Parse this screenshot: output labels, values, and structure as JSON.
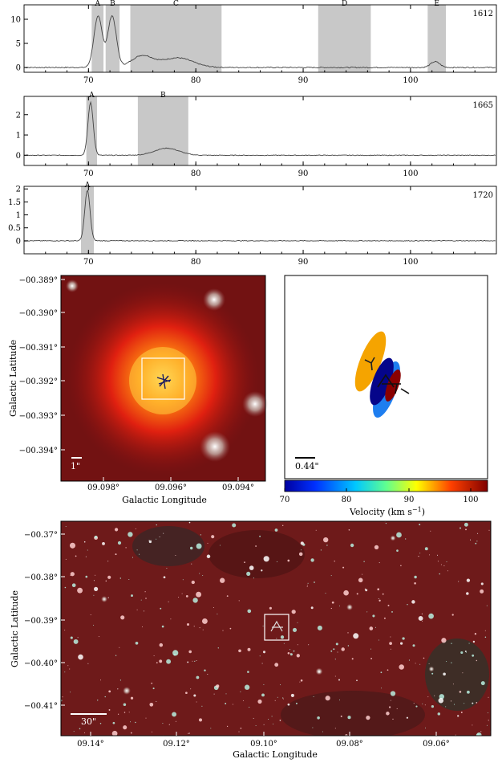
{
  "chart_data": [
    {
      "type": "line",
      "panel": "spectrum-1612",
      "freq_label": "1612",
      "xlim": [
        64,
        108
      ],
      "x_ticks": [
        "70",
        "80",
        "90",
        "100"
      ],
      "ylim": [
        -1,
        13
      ],
      "y_ticks": [
        "0",
        "5",
        "10"
      ],
      "bands": [
        {
          "label": "A",
          "x0": 70.3,
          "x1": 71.4
        },
        {
          "label": "B",
          "x0": 71.6,
          "x1": 72.9
        },
        {
          "label": "C",
          "x0": 73.9,
          "x1": 82.4
        },
        {
          "label": "D",
          "x0": 91.4,
          "x1": 96.3
        },
        {
          "label": "E",
          "x0": 101.6,
          "x1": 103.3
        }
      ],
      "peaks": [
        {
          "x": 70.9,
          "y": 10.6,
          "w": 0.55
        },
        {
          "x": 72.2,
          "y": 10.7,
          "w": 0.55
        },
        {
          "x": 75.0,
          "y": 2.4,
          "w": 1.4
        },
        {
          "x": 78.3,
          "y": 2.0,
          "w": 2.0
        },
        {
          "x": 102.3,
          "y": 1.2,
          "w": 0.6
        }
      ],
      "noise": 0.08
    },
    {
      "type": "line",
      "panel": "spectrum-1665",
      "freq_label": "1665",
      "xlim": [
        64,
        108
      ],
      "x_ticks": [
        "70",
        "80",
        "90",
        "100"
      ],
      "ylim": [
        -0.5,
        2.9
      ],
      "y_ticks": [
        "0",
        "1",
        "2"
      ],
      "bands": [
        {
          "label": "A",
          "x0": 69.8,
          "x1": 70.8
        },
        {
          "label": "B",
          "x0": 74.6,
          "x1": 79.3
        }
      ],
      "peaks": [
        {
          "x": 70.2,
          "y": 2.6,
          "w": 0.35
        },
        {
          "x": 77.3,
          "y": 0.35,
          "w": 1.6
        }
      ],
      "noise": 0.05
    },
    {
      "type": "line",
      "panel": "spectrum-1720",
      "freq_label": "1720",
      "xlim": [
        64,
        108
      ],
      "x_ticks": [
        "70",
        "80",
        "90",
        "100"
      ],
      "ylim": [
        -0.5,
        2.1
      ],
      "y_ticks": [
        "0",
        "0.5",
        "1",
        "1.5",
        "2"
      ],
      "bands": [
        {
          "label": "A",
          "x0": 69.3,
          "x1": 70.5
        }
      ],
      "peaks": [
        {
          "x": 69.9,
          "y": 1.95,
          "w": 0.35
        }
      ],
      "noise": 0.05
    }
  ],
  "zoom_image": {
    "x_ticks": [
      "09.098°",
      "09.096°",
      "09.094°"
    ],
    "y_ticks": [
      "−00.389°",
      "−00.390°",
      "−00.391°",
      "−00.392°",
      "−00.393°",
      "−00.394°"
    ],
    "xlabel": "Galactic Longitude",
    "ylabel": "Galactic Latitude",
    "scale_label": "1\""
  },
  "maser_map": {
    "scale_label": "0.44\"",
    "colorbar_ticks": [
      "70",
      "80",
      "90",
      "100"
    ],
    "colorbar_label": "Velocity (km s",
    "colorbar_label_sup": "−1",
    "colorbar_label_end": ")",
    "colors": {
      "orange": "#f5a400",
      "blue": "#1e7ef0",
      "navy": "#05058a",
      "darkred": "#8a0000"
    }
  },
  "wide_image": {
    "x_ticks": [
      "09.14°",
      "09.12°",
      "09.10°",
      "09.08°",
      "09.06°"
    ],
    "y_ticks": [
      "−00.37°",
      "−00.38°",
      "−00.39°",
      "−00.40°",
      "−00.41°"
    ],
    "xlabel": "Galactic Longitude",
    "ylabel": "Galactic Latitude",
    "scale_label": "30\""
  }
}
